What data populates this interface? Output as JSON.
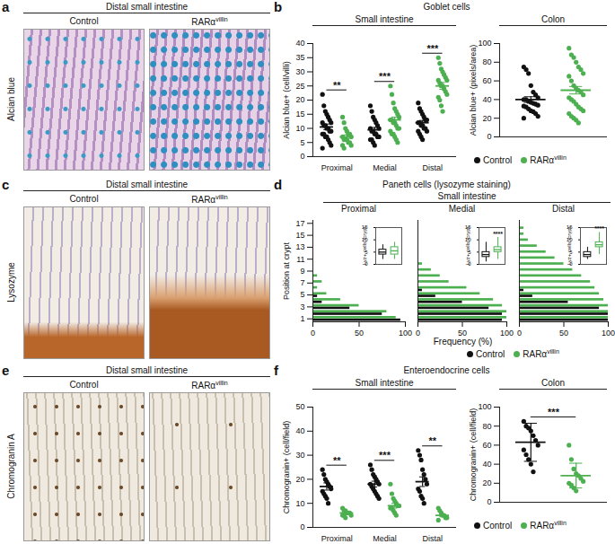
{
  "name_superscript": "villin",
  "series": [
    {
      "name": "Control",
      "color": "#111111"
    },
    {
      "name": "RARαvillin",
      "color": "#4caf50"
    }
  ],
  "images": [
    {
      "panel": "a",
      "header": "Distal small intestine",
      "stain": "Alcian blue",
      "columns": [
        "Control",
        "RARαvillin"
      ]
    },
    {
      "panel": "c",
      "header": "Distal small intestine",
      "stain": "Lysozyme",
      "columns": [
        "Control",
        "RARαvillin"
      ]
    },
    {
      "panel": "e",
      "header": "Distal small intestine",
      "stain": "Chromogranin A",
      "columns": [
        "Control",
        "RARαvillin"
      ]
    }
  ],
  "chart_data": [
    {
      "panel": "b",
      "type": "scatter",
      "title": "Goblet cells",
      "legend": "bottom",
      "charts": [
        {
          "subtitle": "Small intestine",
          "y_label": "Alcian blue+ (cell/villi)",
          "ylim": [
            0,
            40
          ],
          "yticks": [
            0,
            5,
            10,
            15,
            20,
            25,
            30,
            35,
            40
          ],
          "groups": [
            {
              "category": "Proximal",
              "values": [
                [
                  22,
                  18,
                  16,
                  15,
                  14,
                  13,
                  12,
                  12,
                  11,
                  11,
                  10,
                  10,
                  9,
                  9,
                  8,
                  8,
                  7,
                  7,
                  6,
                  5,
                  4,
                  3
                ],
                [
                  14,
                  12,
                  10,
                  9,
                  8,
                  8,
                  7,
                  7,
                  6,
                  6,
                  6,
                  5,
                  5,
                  4,
                  4,
                  3
                ]
              ],
              "mean": [
                10.5,
                7
              ],
              "error": [
                1,
                0.7
              ],
              "significance": "**"
            },
            {
              "category": "Medial",
              "values": [
                [
                  18,
                  16,
                  14,
                  13,
                  12,
                  11,
                  10,
                  10,
                  9,
                  9,
                  8,
                  8,
                  7,
                  7,
                  6,
                  6,
                  5,
                  4
                ],
                [
                  25,
                  22,
                  19,
                  17,
                  16,
                  15,
                  14,
                  13,
                  13,
                  12,
                  12,
                  11,
                  10,
                  10,
                  9,
                  8,
                  8,
                  7,
                  6,
                  5
                ]
              ],
              "mean": [
                9.5,
                13
              ],
              "error": [
                0.8,
                1
              ],
              "significance": "***"
            },
            {
              "category": "Distal",
              "values": [
                [
                  19,
                  17,
                  16,
                  15,
                  14,
                  13,
                  13,
                  12,
                  12,
                  11,
                  11,
                  10,
                  10,
                  9,
                  9,
                  8,
                  7,
                  6
                ],
                [
                  35,
                  33,
                  31,
                  30,
                  29,
                  28,
                  27,
                  27,
                  26,
                  25,
                  25,
                  24,
                  23,
                  22,
                  21,
                  20,
                  18,
                  16
                ]
              ],
              "mean": [
                12,
                25
              ],
              "error": [
                0.8,
                1.2
              ],
              "significance": "***"
            }
          ]
        },
        {
          "subtitle": "Colon",
          "y_label": "Alcian blue+ (pixels/area)",
          "ylim": [
            0,
            100
          ],
          "yticks": [
            0,
            20,
            40,
            60,
            80,
            100
          ],
          "groups": [
            {
              "category": null,
              "values": [
                [
                  75,
                  72,
                  68,
                  55,
                  48,
                  45,
                  42,
                  40,
                  40,
                  38,
                  37,
                  36,
                  35,
                  34,
                  33,
                  32,
                  30,
                  28,
                  27,
                  25,
                  22,
                  20
                ],
                [
                  95,
                  88,
                  85,
                  80,
                  75,
                  72,
                  68,
                  65,
                  60,
                  55,
                  52,
                  50,
                  48,
                  45,
                  42,
                  40,
                  38,
                  35,
                  32,
                  30,
                  28,
                  25,
                  22,
                  20,
                  18,
                  15
                ]
              ],
              "mean": [
                40,
                50
              ],
              "error": [
                3,
                4
              ],
              "significance": null
            }
          ]
        }
      ]
    },
    {
      "panel": "d",
      "type": "bar",
      "orientation": "horizontal",
      "title": "Paneth cells (lysozyme staining)",
      "subtitle": "Small intestine",
      "y_label": "Position at crypt",
      "x_label": "Frequency (%)",
      "legend": "bottom",
      "positions": [
        1,
        2,
        3,
        4,
        5,
        6,
        7,
        8,
        9,
        10,
        11,
        12,
        13,
        14,
        15,
        16,
        17
      ],
      "ylim": [
        0.5,
        17.5
      ],
      "yticks": [
        1,
        3,
        5,
        7,
        9,
        11,
        13,
        15,
        17
      ],
      "xlim": [
        0,
        100
      ],
      "xticks": [
        0,
        50,
        100
      ],
      "segments": [
        {
          "name": "Proximal",
          "values": [
            [
              95,
              75,
              40,
              10,
              5,
              0,
              0,
              0,
              0,
              0,
              0,
              0,
              0,
              0,
              0,
              0,
              0
            ],
            [
              90,
              80,
              50,
              30,
              15,
              5,
              10,
              5,
              0,
              0,
              0,
              0,
              0,
              0,
              0,
              0,
              0
            ]
          ],
          "inset": {
            "y_label": "Lyz+ cells /crypt",
            "ylim": [
              0,
              15
            ],
            "yticks": [
              0,
              5,
              10,
              15
            ],
            "box": [
              [
                2,
                4,
                5,
                6,
                8
              ],
              [
                2,
                4,
                5.5,
                7,
                9
              ]
            ],
            "significance": null
          }
        },
        {
          "name": "Medial",
          "values": [
            [
              95,
              95,
              80,
              50,
              20,
              5,
              0,
              0,
              0,
              0,
              0,
              0,
              0,
              0,
              0,
              0,
              0
            ],
            [
              100,
              100,
              95,
              85,
              70,
              55,
              35,
              25,
              15,
              5,
              0,
              0,
              0,
              0,
              0,
              0,
              0
            ]
          ],
          "inset": {
            "y_label": "Lyz+ cells /crypt",
            "ylim": [
              0,
              15
            ],
            "yticks": [
              0,
              5,
              10,
              15
            ],
            "box": [
              [
                1,
                3,
                4,
                5,
                9
              ],
              [
                2,
                5,
                6,
                7,
                11
              ]
            ],
            "significance": "****"
          }
        },
        {
          "name": "Distal",
          "values": [
            [
              100,
              100,
              90,
              55,
              15,
              5,
              0,
              0,
              0,
              0,
              0,
              0,
              0,
              0,
              0,
              0,
              0
            ],
            [
              100,
              100,
              100,
              95,
              90,
              85,
              80,
              70,
              60,
              50,
              40,
              30,
              20,
              10,
              5,
              5,
              0
            ]
          ],
          "inset": {
            "y_label": "Lyz+ cells /crypt",
            "ylim": [
              0,
              15
            ],
            "yticks": [
              0,
              5,
              10,
              15
            ],
            "box": [
              [
                2,
                3,
                4,
                5,
                7
              ],
              [
                4,
                7,
                8,
                9,
                13
              ]
            ],
            "significance": "****"
          }
        }
      ]
    },
    {
      "panel": "f",
      "type": "scatter",
      "title": "Enteroendocrine cells",
      "legend": "bottom",
      "charts": [
        {
          "subtitle": "Small intestine",
          "y_label": "Chromogranin+ (cell/field)",
          "ylim": [
            0,
            50
          ],
          "yticks": [
            0,
            10,
            20,
            30,
            40,
            50
          ],
          "groups": [
            {
              "category": "Proximal",
              "values": [
                [
                  24,
                  22,
                  20,
                  19,
                  18,
                  17,
                  16,
                  15,
                  14,
                  13,
                  12,
                  10
                ],
                [
                  8,
                  7,
                  7,
                  6,
                  6,
                  6,
                  5,
                  5,
                  5,
                  4
                ]
              ],
              "mean": [
                17,
                6
              ],
              "error": [
                1.5,
                0.5
              ],
              "significance": "**"
            },
            {
              "category": "Medial",
              "values": [
                [
                  26,
                  24,
                  22,
                  21,
                  20,
                  19,
                  18,
                  18,
                  17,
                  16,
                  15,
                  14,
                  13,
                  12
                ],
                [
                  18,
                  14,
                  12,
                  11,
                  10,
                  9,
                  9,
                  8,
                  8,
                  7,
                  6,
                  5
                ]
              ],
              "mean": [
                18,
                9
              ],
              "error": [
                1.2,
                1
              ],
              "significance": "***"
            },
            {
              "category": "Distal",
              "values": [
                [
                  32,
                  30,
                  28,
                  24,
                  22,
                  20,
                  18,
                  16,
                  15,
                  13,
                  12,
                  10
                ],
                [
                  8,
                  7,
                  6,
                  5,
                  5,
                  4,
                  4,
                  3
                ]
              ],
              "mean": [
                19,
                5
              ],
              "error": [
                2,
                0.6
              ],
              "significance": "**"
            }
          ]
        },
        {
          "subtitle": "Colon",
          "y_label": "Chromogranin+ (cell/field)",
          "ylim": [
            0,
            100
          ],
          "yticks": [
            0,
            20,
            40,
            60,
            80,
            100
          ],
          "groups": [
            {
              "category": null,
              "values": [
                [
                  85,
                  80,
                  78,
                  75,
                  70,
                  65,
                  60,
                  55,
                  50,
                  45,
                  40,
                  32
                ],
                [
                  60,
                  45,
                  35,
                  30,
                  28,
                  25,
                  22,
                  20,
                  18,
                  15,
                  12
                ]
              ],
              "mean": [
                63,
                28
              ],
              "error": [
                20,
                13
              ],
              "significance": "***"
            }
          ]
        }
      ]
    }
  ]
}
